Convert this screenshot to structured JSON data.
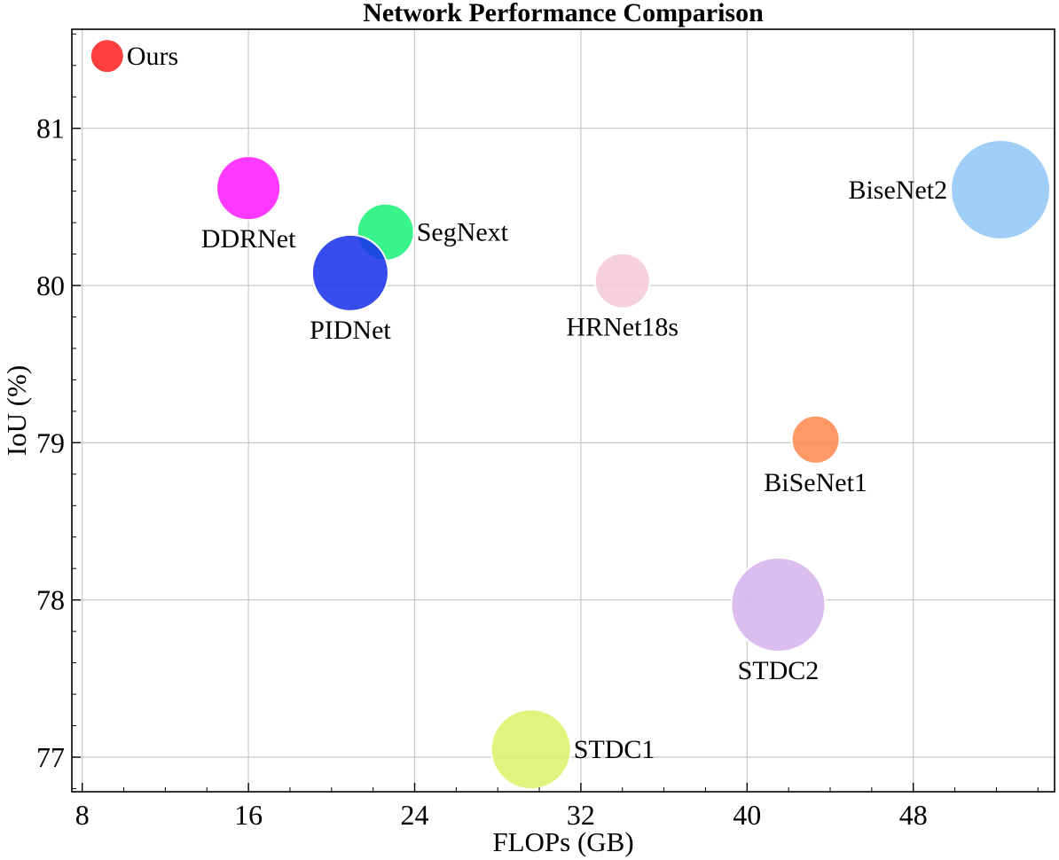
{
  "chart_data": {
    "type": "scatter",
    "title": "Network Performance Comparison",
    "xlabel": "FLOPs (GB)",
    "ylabel": "IoU (%)",
    "xlim": [
      7.5,
      54.8
    ],
    "ylim": [
      76.78,
      81.63
    ],
    "xticks": [
      8,
      16,
      24,
      32,
      40,
      48
    ],
    "yticks": [
      77,
      78,
      79,
      80,
      81
    ],
    "grid": true,
    "points": [
      {
        "label": "Ours",
        "x": 9.2,
        "y": 81.46,
        "color": "#ff2424",
        "label_pos": "right"
      },
      {
        "label": "DDRNet",
        "x": 16.0,
        "y": 80.62,
        "color": "#ff1eff",
        "label_pos": "below"
      },
      {
        "label": "SegNext",
        "x": 22.6,
        "y": 80.34,
        "color": "#1ef37a",
        "label_pos": "right"
      },
      {
        "label": "PIDNet",
        "x": 20.9,
        "y": 80.08,
        "color": "#1a33ea",
        "label_pos": "below"
      },
      {
        "label": "HRNet18s",
        "x": 34.0,
        "y": 80.03,
        "color": "#f4c9da",
        "label_pos": "below"
      },
      {
        "label": "BiseNet2",
        "x": 52.2,
        "y": 80.61,
        "color": "#92c8f6",
        "label_pos": "left"
      },
      {
        "label": "BiSeNet1",
        "x": 43.3,
        "y": 79.02,
        "color": "#ff8a50",
        "label_pos": "below"
      },
      {
        "label": "STDC2",
        "x": 41.5,
        "y": 77.97,
        "color": "#d6b4ee",
        "label_pos": "below"
      },
      {
        "label": "STDC1",
        "x": 29.6,
        "y": 77.05,
        "color": "#d9f36a",
        "label_pos": "right"
      }
    ]
  }
}
